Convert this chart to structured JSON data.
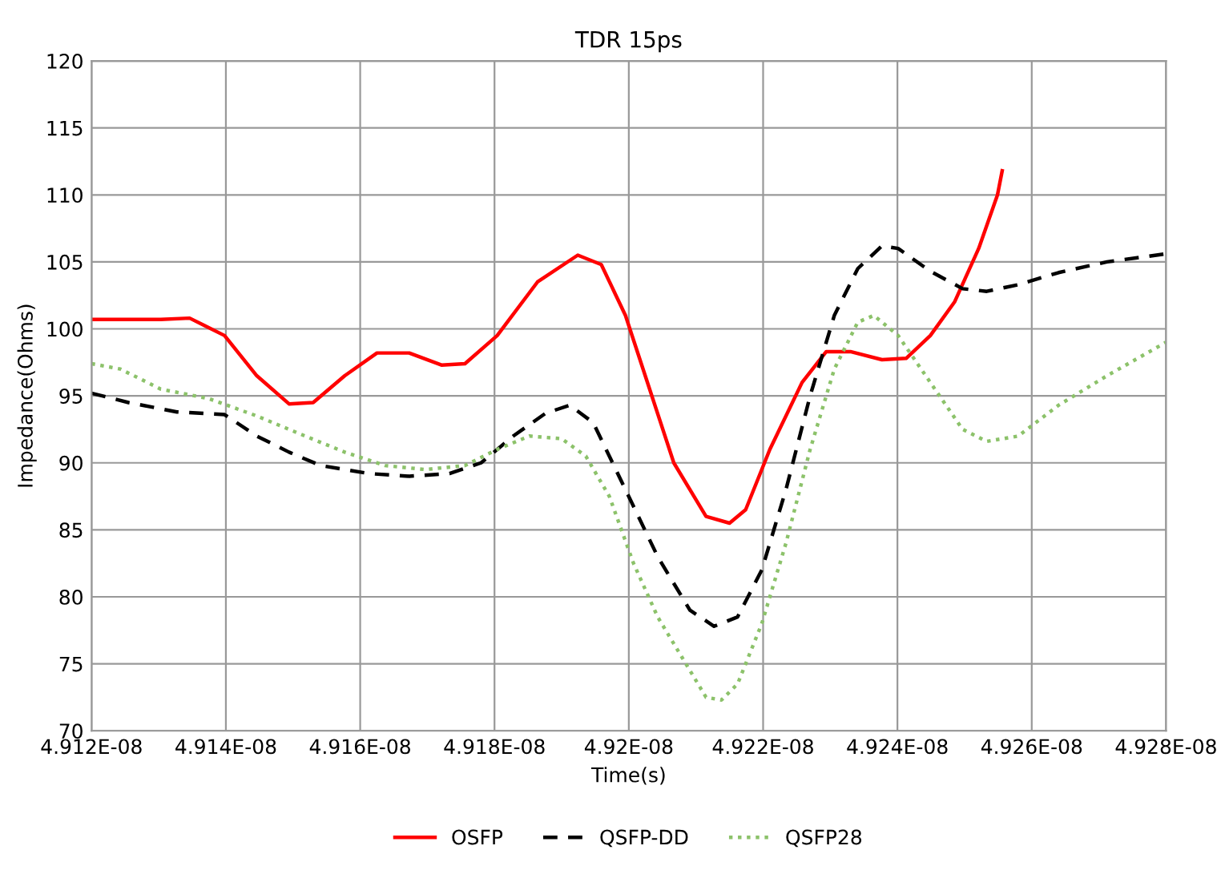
{
  "chart_data": {
    "type": "line",
    "title": "TDR 15ps",
    "xlabel": "Time(s)",
    "ylabel": "Impedance(Ohms)",
    "xlim": [
      4.912e-08,
      4.928e-08
    ],
    "xticks": [
      {
        "value": 4.912e-08,
        "label": "4.912E-08"
      },
      {
        "value": 4.914e-08,
        "label": "4.914E-08"
      },
      {
        "value": 4.916e-08,
        "label": "4.916E-08"
      },
      {
        "value": 4.918e-08,
        "label": "4.918E-08"
      },
      {
        "value": 4.92e-08,
        "label": "4.92E-08"
      },
      {
        "value": 4.922e-08,
        "label": "4.922E-08"
      },
      {
        "value": 4.924e-08,
        "label": "4.924E-08"
      },
      {
        "value": 4.926e-08,
        "label": "4.926E-08"
      },
      {
        "value": 4.928e-08,
        "label": "4.928E-08"
      }
    ],
    "ylim": [
      70,
      120
    ],
    "yticks": [
      70,
      75,
      80,
      85,
      90,
      95,
      100,
      105,
      110,
      115,
      120
    ],
    "grid": true,
    "legend": "bottom",
    "marker": "none",
    "series": [
      {
        "name": "OSFP",
        "color": "#ff0000",
        "line_style": "solid",
        "x": [
          4.912e-08,
          4.91303e-08,
          4.91346e-08,
          4.91398e-08,
          4.91446e-08,
          4.91494e-08,
          4.9153e-08,
          4.91577e-08,
          4.91625e-08,
          4.91673e-08,
          4.91721e-08,
          4.91756e-08,
          4.91804e-08,
          4.91864e-08,
          4.91924e-08,
          4.91959e-08,
          4.91995e-08,
          4.92031e-08,
          4.92067e-08,
          4.92115e-08,
          4.9215e-08,
          4.92174e-08,
          4.9221e-08,
          4.92258e-08,
          4.92294e-08,
          4.9233e-08,
          4.92377e-08,
          4.92413e-08,
          4.92449e-08,
          4.92485e-08,
          4.92521e-08,
          4.92549e-08,
          4.92556e-08
        ],
        "values": [
          100.7,
          100.7,
          100.8,
          99.5,
          96.5,
          94.4,
          94.5,
          96.5,
          98.2,
          98.2,
          97.3,
          97.4,
          99.5,
          103.5,
          105.5,
          104.8,
          101,
          95.5,
          90,
          86,
          85.5,
          86.5,
          91,
          96,
          98.3,
          98.3,
          97.7,
          97.8,
          99.5,
          102,
          106,
          110,
          111.8
        ]
      },
      {
        "name": "QSFP-DD",
        "color": "#000000",
        "line_style": "dashed",
        "x": [
          4.912e-08,
          4.91255e-08,
          4.91327e-08,
          4.91398e-08,
          4.91446e-08,
          4.91494e-08,
          4.91541e-08,
          4.91613e-08,
          4.91673e-08,
          4.91733e-08,
          4.9178e-08,
          4.91828e-08,
          4.91876e-08,
          4.91912e-08,
          4.91947e-08,
          4.91995e-08,
          4.92043e-08,
          4.92091e-08,
          4.92127e-08,
          4.92162e-08,
          4.92198e-08,
          4.92234e-08,
          4.9227e-08,
          4.92306e-08,
          4.92341e-08,
          4.92377e-08,
          4.92401e-08,
          4.92449e-08,
          4.92497e-08,
          4.92533e-08,
          4.9258e-08,
          4.9264e-08,
          4.92712e-08,
          4.928e-08
        ],
        "values": [
          95.2,
          94.5,
          93.8,
          93.6,
          92,
          90.8,
          89.8,
          89.2,
          89,
          89.2,
          90,
          92,
          93.7,
          94.3,
          93,
          88,
          83,
          79,
          77.8,
          78.5,
          82,
          88,
          95,
          101,
          104.5,
          106.2,
          106,
          104.3,
          103,
          102.8,
          103.3,
          104.2,
          105,
          105.6
        ]
      },
      {
        "name": "QSFP28",
        "color": "#8cc26a",
        "line_style": "dotted",
        "x": [
          4.912e-08,
          4.91243e-08,
          4.91303e-08,
          4.91374e-08,
          4.91446e-08,
          4.91518e-08,
          4.91577e-08,
          4.91637e-08,
          4.91697e-08,
          4.91756e-08,
          4.91804e-08,
          4.91852e-08,
          4.919e-08,
          4.91936e-08,
          4.91971e-08,
          4.92007e-08,
          4.92043e-08,
          4.92079e-08,
          4.92115e-08,
          4.92138e-08,
          4.92162e-08,
          4.92198e-08,
          4.92234e-08,
          4.9227e-08,
          4.92306e-08,
          4.92341e-08,
          4.92365e-08,
          4.92401e-08,
          4.92449e-08,
          4.92497e-08,
          4.92533e-08,
          4.9258e-08,
          4.9264e-08,
          4.92712e-08,
          4.928e-08
        ],
        "values": [
          97.4,
          97,
          95.5,
          94.8,
          93.5,
          92,
          90.8,
          89.8,
          89.5,
          89.8,
          91,
          92,
          91.8,
          90.5,
          87.5,
          82.5,
          78.5,
          75.5,
          72.5,
          72.3,
          73.5,
          78,
          84,
          91,
          97,
          100.5,
          101,
          99.5,
          96,
          92.5,
          91.6,
          92,
          94.3,
          96.5,
          99
        ]
      }
    ]
  }
}
